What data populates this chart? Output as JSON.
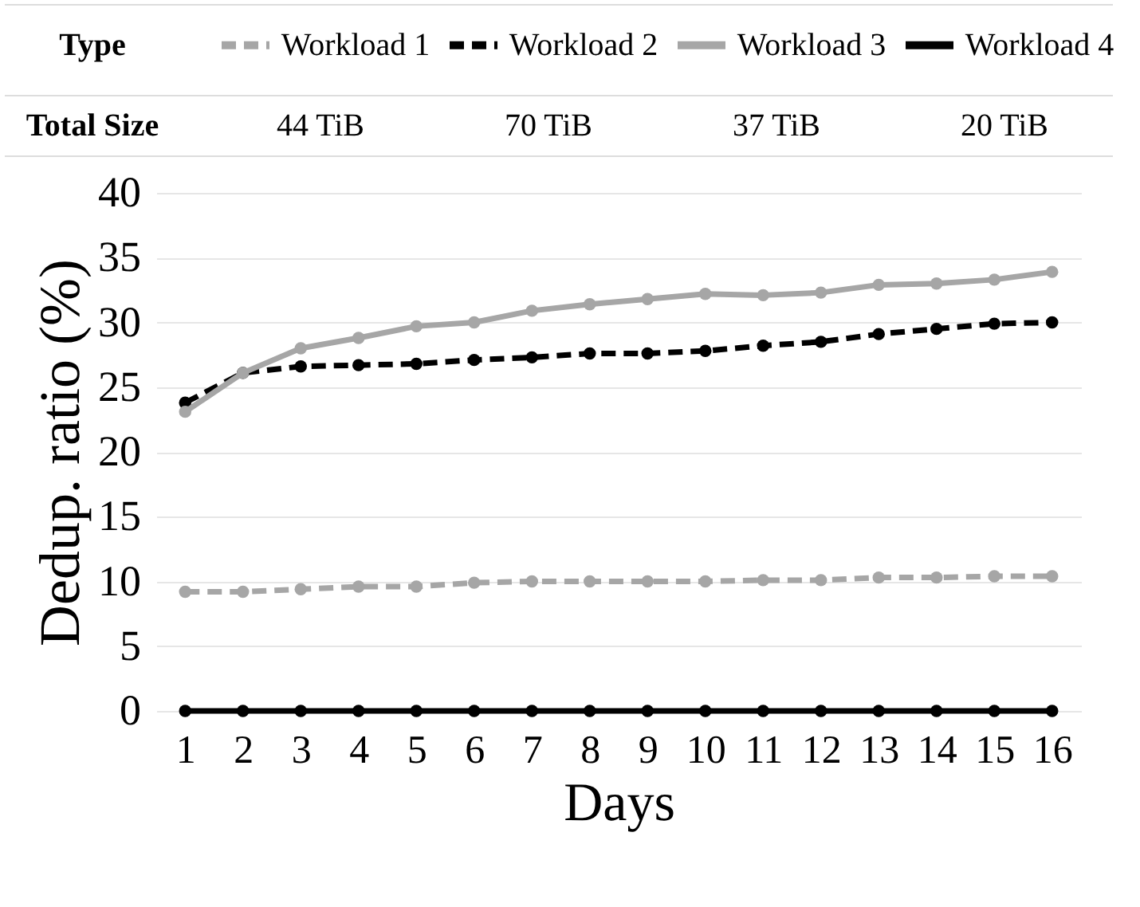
{
  "chart_data": {
    "type": "line",
    "xlabel": "Days",
    "ylabel": "Dedup. ratio (%)",
    "legend": "top",
    "legend_title": "Type",
    "annotations": [
      "Total Size",
      "44 TiB",
      "70 TiB",
      "37 TiB",
      "20 TiB"
    ],
    "x": [
      1,
      2,
      3,
      4,
      5,
      6,
      7,
      8,
      9,
      10,
      11,
      12,
      13,
      14,
      15,
      16
    ],
    "xlim": [
      0.5,
      16.5
    ],
    "xticks": [
      1,
      2,
      3,
      4,
      5,
      6,
      7,
      8,
      9,
      10,
      11,
      12,
      13,
      14,
      15,
      16
    ],
    "ylim": [
      0,
      40
    ],
    "yticks": [
      0,
      5,
      10,
      15,
      20,
      25,
      30,
      35,
      40
    ],
    "grid": "y",
    "marker": "circle",
    "series": [
      {
        "name": "Workload 1",
        "color": "#a6a6a6",
        "line_style": "dashed",
        "values": [
          9.2,
          9.2,
          9.4,
          9.6,
          9.6,
          9.9,
          10.0,
          10.0,
          10.0,
          10.0,
          10.1,
          10.1,
          10.3,
          10.3,
          10.4,
          10.4
        ]
      },
      {
        "name": "Workload 2",
        "color": "#000000",
        "line_style": "dashed",
        "values": [
          23.8,
          26.1,
          26.6,
          26.7,
          26.8,
          27.1,
          27.3,
          27.6,
          27.6,
          27.8,
          28.2,
          28.5,
          29.1,
          29.5,
          29.9,
          30.0
        ]
      },
      {
        "name": "Workload 3",
        "color": "#a6a6a6",
        "line_style": "solid",
        "values": [
          23.1,
          26.1,
          28.0,
          28.8,
          29.7,
          30.0,
          30.9,
          31.4,
          31.8,
          32.2,
          32.1,
          32.3,
          32.9,
          33.0,
          33.3,
          33.9
        ]
      },
      {
        "name": "Workload 4",
        "color": "#000000",
        "line_style": "solid",
        "values": [
          0,
          0,
          0,
          0,
          0,
          0,
          0,
          0,
          0,
          0,
          0,
          0,
          0,
          0,
          0,
          0
        ]
      }
    ]
  }
}
